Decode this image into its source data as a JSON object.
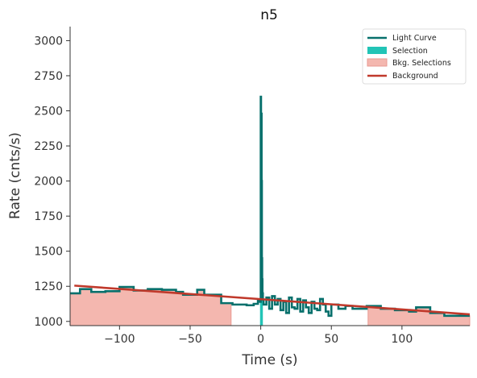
{
  "chart_data": {
    "type": "line",
    "title": "n5",
    "xlabel": "Time (s)",
    "ylabel": "Rate (cnts/s)",
    "xlim": [
      -135,
      148
    ],
    "ylim": [
      970,
      3100
    ],
    "xticks": [
      -100,
      -50,
      0,
      50,
      100
    ],
    "yticks": [
      1000,
      1250,
      1500,
      1750,
      2000,
      2250,
      2500,
      2750,
      3000
    ],
    "grid": false,
    "legend_position": "top-right",
    "legend": [
      "Light Curve",
      "Selection",
      "Bkg. Selections",
      "Background"
    ],
    "bkg_selections": [
      [
        -135,
        -21
      ],
      [
        76,
        148
      ]
    ],
    "selection": [
      -0.5,
      1.5
    ],
    "background": {
      "x": [
        -132,
        148
      ],
      "y": [
        1255,
        1050
      ]
    },
    "light_curve": {
      "x": [
        -135,
        -128,
        -120,
        -110,
        -100,
        -90,
        -80,
        -70,
        -60,
        -55,
        -45,
        -40,
        -28,
        -20,
        -10,
        -5,
        -2,
        -0.5,
        0.0,
        0.2,
        0.4,
        0.6,
        0.8,
        1.0,
        1.2,
        1.5,
        2,
        4,
        6,
        8,
        10,
        12,
        14,
        16,
        18,
        20,
        22,
        24,
        26,
        28,
        30,
        32,
        34,
        36,
        38,
        40,
        42,
        44,
        46,
        48,
        50,
        55,
        60,
        65,
        70,
        75,
        85,
        95,
        105,
        110,
        120,
        130,
        140,
        148
      ],
      "y": [
        1200,
        1230,
        1210,
        1215,
        1245,
        1220,
        1230,
        1225,
        1210,
        1190,
        1225,
        1190,
        1130,
        1120,
        1115,
        1125,
        1150,
        1140,
        2600,
        1500,
        2480,
        2000,
        1450,
        1300,
        1200,
        1155,
        1120,
        1170,
        1090,
        1180,
        1120,
        1160,
        1080,
        1140,
        1060,
        1170,
        1100,
        1090,
        1160,
        1070,
        1150,
        1100,
        1060,
        1140,
        1090,
        1080,
        1160,
        1120,
        1070,
        1040,
        1120,
        1090,
        1110,
        1090,
        1090,
        1110,
        1090,
        1080,
        1070,
        1100,
        1060,
        1040,
        1040,
        1040
      ]
    },
    "colors": {
      "light_curve": "#07706c",
      "selection": "#22c4b6",
      "bkg_fill": "#f4b7af",
      "bkg_edge": "#e89a91",
      "background": "#c0392b",
      "axis": "#333333"
    }
  }
}
